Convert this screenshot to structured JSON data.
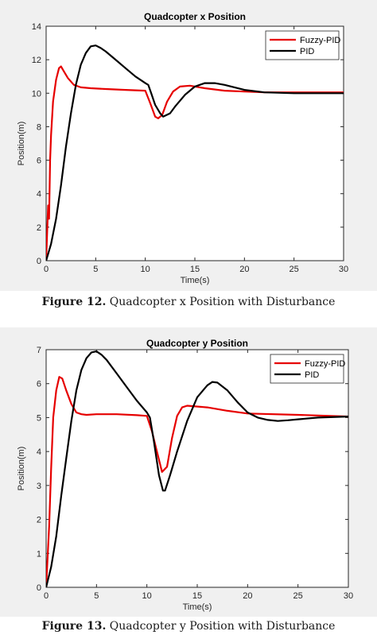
{
  "corner_mark": "y",
  "chart_data": [
    {
      "type": "line",
      "title": "Quadcopter x Position",
      "xlabel": "Time(s)",
      "ylabel": "Position(m)",
      "xlim": [
        0,
        30
      ],
      "ylim": [
        0,
        14
      ],
      "xticks": [
        0,
        5,
        10,
        15,
        20,
        25,
        30
      ],
      "yticks": [
        0,
        2,
        4,
        6,
        8,
        10,
        12,
        14
      ],
      "grid": false,
      "legend": "top-right",
      "series": [
        {
          "name": "Fuzzy-PID",
          "color": "#e60000",
          "x": [
            0,
            0.2,
            0.3,
            0.4,
            0.5,
            0.7,
            1.0,
            1.3,
            1.5,
            1.8,
            2.2,
            2.8,
            3.5,
            4.5,
            6,
            8,
            10,
            10.5,
            11,
            11.3,
            11.7,
            12.2,
            12.8,
            13.5,
            14.5,
            16,
            18,
            20,
            22,
            25,
            28,
            30
          ],
          "y": [
            0,
            3.3,
            2.5,
            6.0,
            7.5,
            9.5,
            10.8,
            11.5,
            11.6,
            11.3,
            10.9,
            10.5,
            10.35,
            10.3,
            10.25,
            10.2,
            10.15,
            9.4,
            8.6,
            8.5,
            8.7,
            9.5,
            10.1,
            10.4,
            10.45,
            10.3,
            10.15,
            10.1,
            10.05,
            10.05,
            10.05,
            10.05
          ]
        },
        {
          "name": "PID",
          "color": "#000000",
          "x": [
            0,
            0.5,
            1,
            1.5,
            2,
            2.5,
            3,
            3.5,
            4,
            4.5,
            5,
            5.5,
            6,
            7,
            8,
            9,
            10,
            10.3,
            10.6,
            11,
            11.5,
            11.8,
            12.5,
            13,
            14,
            15,
            16,
            17,
            18,
            20,
            22,
            25,
            30
          ],
          "y": [
            0,
            1.0,
            2.5,
            4.5,
            6.8,
            8.8,
            10.5,
            11.7,
            12.4,
            12.8,
            12.85,
            12.7,
            12.5,
            12.0,
            11.5,
            11.0,
            10.6,
            10.5,
            10.0,
            9.3,
            8.8,
            8.6,
            8.8,
            9.2,
            9.9,
            10.4,
            10.6,
            10.6,
            10.5,
            10.2,
            10.05,
            10.0,
            10.0
          ]
        }
      ]
    },
    {
      "type": "line",
      "title": "Quadcopter y Position",
      "xlabel": "Time(s)",
      "ylabel": "Position(m)",
      "xlim": [
        0,
        30
      ],
      "ylim": [
        0,
        7
      ],
      "xticks": [
        0,
        5,
        10,
        15,
        20,
        25,
        30
      ],
      "yticks": [
        0,
        1,
        2,
        3,
        4,
        5,
        6,
        7
      ],
      "grid": false,
      "legend": "top-right",
      "series": [
        {
          "name": "Fuzzy-PID",
          "color": "#e60000",
          "x": [
            0,
            0.3,
            0.5,
            0.7,
            1.0,
            1.3,
            1.6,
            2.0,
            2.5,
            3,
            3.5,
            4,
            5,
            7,
            9,
            10,
            10.5,
            11,
            11.5,
            12,
            12.5,
            13,
            13.5,
            14,
            16,
            18,
            20,
            25,
            30
          ],
          "y": [
            0,
            1.8,
            3.5,
            5.0,
            5.8,
            6.2,
            6.15,
            5.8,
            5.4,
            5.15,
            5.1,
            5.08,
            5.1,
            5.1,
            5.07,
            5.05,
            4.6,
            4.0,
            3.4,
            3.55,
            4.4,
            5.05,
            5.3,
            5.35,
            5.3,
            5.2,
            5.12,
            5.08,
            5.03
          ]
        },
        {
          "name": "PID",
          "color": "#000000",
          "x": [
            0,
            0.5,
            1,
            1.5,
            2,
            2.5,
            3,
            3.5,
            4,
            4.5,
            5,
            5.5,
            6,
            7,
            8,
            9,
            10,
            10.3,
            10.7,
            11.2,
            11.6,
            11.8,
            12.3,
            13,
            14,
            15,
            16,
            16.5,
            17,
            18,
            19,
            20,
            21,
            22,
            23,
            24,
            25,
            27,
            30
          ],
          "y": [
            0,
            0.6,
            1.5,
            2.7,
            3.8,
            4.9,
            5.8,
            6.4,
            6.75,
            6.92,
            6.95,
            6.85,
            6.7,
            6.3,
            5.9,
            5.5,
            5.15,
            5.0,
            4.3,
            3.3,
            2.85,
            2.85,
            3.3,
            4.0,
            4.9,
            5.6,
            5.95,
            6.05,
            6.03,
            5.8,
            5.45,
            5.15,
            5.0,
            4.93,
            4.9,
            4.92,
            4.95,
            5.0,
            5.03
          ]
        }
      ]
    }
  ],
  "captions": [
    {
      "label": "Figure 12.",
      "text": "Quadcopter x Position with Disturbance"
    },
    {
      "label": "Figure 13.",
      "text": "Quadcopter y Position with Disturbance"
    }
  ]
}
